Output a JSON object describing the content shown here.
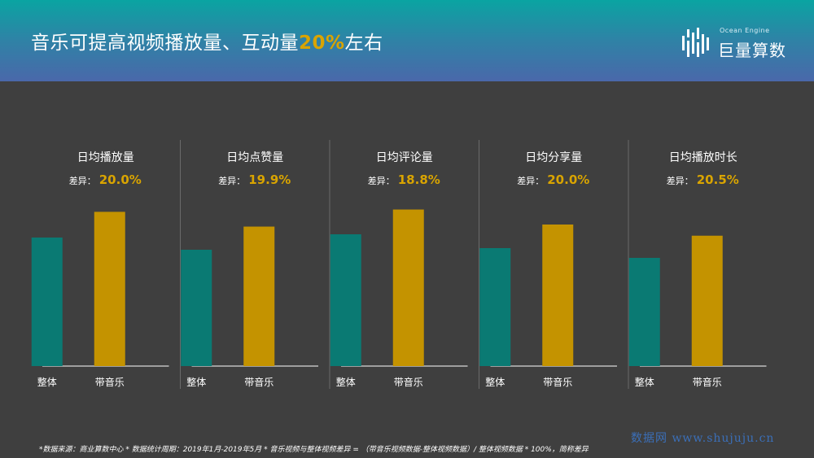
{
  "header": {
    "title_prefix": "音乐可提高视频播放量、互动量",
    "title_highlight": "20%",
    "title_suffix": "左右"
  },
  "logo": {
    "name": "巨量算数",
    "subtitle": "Ocean Engine"
  },
  "colors": {
    "overall": "#0a7a73",
    "with_music": "#c49300",
    "accent": "#d9a400",
    "background": "#3f3f3f"
  },
  "chart_data": [
    {
      "type": "bar",
      "title": "日均播放量",
      "diff_label": "差异：",
      "diff_value": "20.0%",
      "categories": [
        "整体",
        "带音乐"
      ],
      "values": [
        1.0,
        1.2
      ]
    },
    {
      "type": "bar",
      "title": "日均点赞量",
      "diff_label": "差异：",
      "diff_value": "19.9%",
      "categories": [
        "整体",
        "带音乐"
      ],
      "values": [
        1.0,
        1.199
      ]
    },
    {
      "type": "bar",
      "title": "日均评论量",
      "diff_label": "差异：",
      "diff_value": "18.8%",
      "categories": [
        "整体",
        "带音乐"
      ],
      "values": [
        1.0,
        1.188
      ]
    },
    {
      "type": "bar",
      "title": "日均分享量",
      "diff_label": "差异：",
      "diff_value": "20.0%",
      "categories": [
        "整体",
        "带音乐"
      ],
      "values": [
        1.0,
        1.2
      ]
    },
    {
      "type": "bar",
      "title": "日均播放时长",
      "diff_label": "差异：",
      "diff_value": "20.5%",
      "categories": [
        "整体",
        "带音乐"
      ],
      "values": [
        1.0,
        1.205
      ]
    }
  ],
  "footnote": "*数据来源：商业算数中心 * 数据统计周期：2019年1月-2019年5月 * 音乐视频与整体视频差异 = （带音乐视频数据-整体视频数据）/ 整体视频数据 * 100%，简称差异",
  "watermark": "数据网 www.shujuju.cn"
}
